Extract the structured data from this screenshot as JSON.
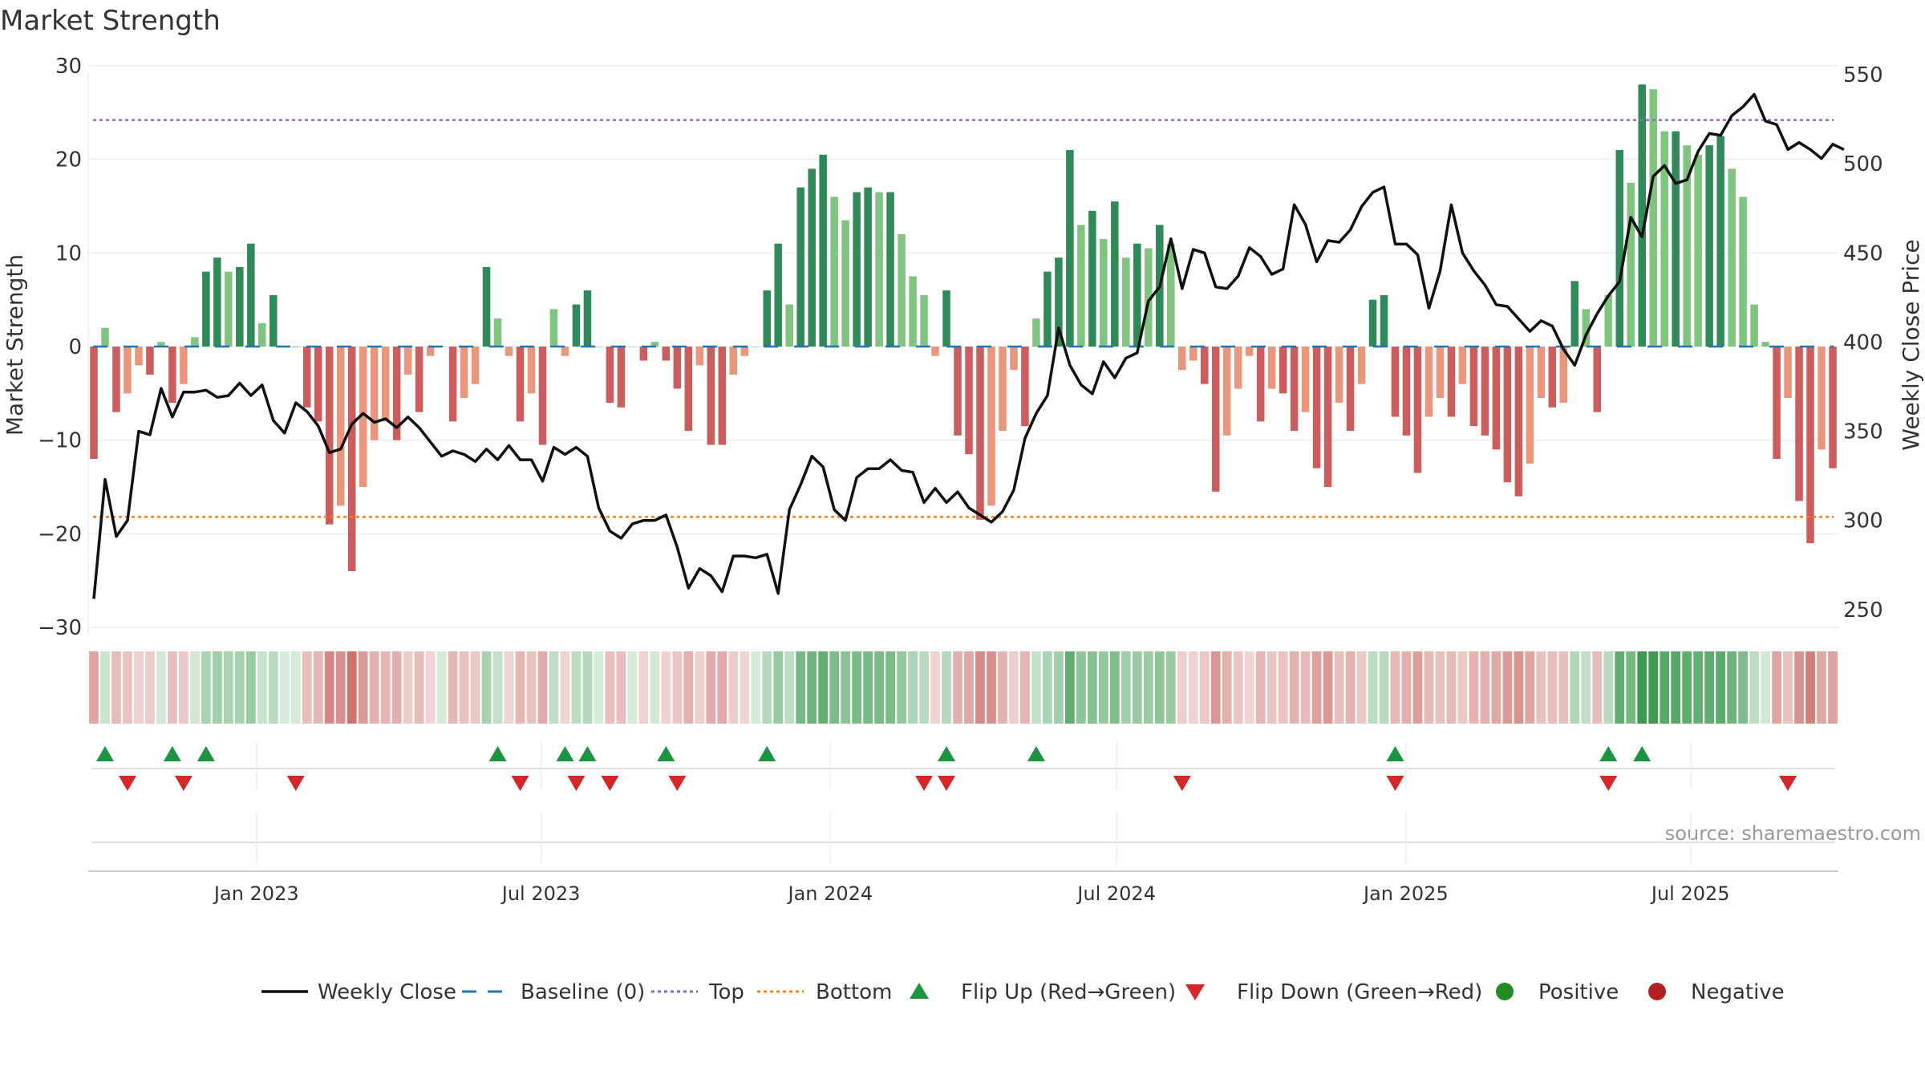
{
  "chart_data": {
    "type": "bar",
    "title": "Market Strength",
    "ylabel_left": "Market Strength",
    "ylabel_right": "Weekly Close Price",
    "ylim_left": [
      -30,
      30
    ],
    "ylim_right": [
      240,
      555
    ],
    "yticks_left": [
      -30,
      -20,
      -10,
      0,
      10,
      20,
      30
    ],
    "yticks_right": [
      250,
      300,
      350,
      400,
      450,
      500,
      550
    ],
    "x_start": "2022-09-16",
    "x_end": "2025-10-03",
    "xticks": [
      {
        "date": "2023-01-01",
        "label": "Jan 2023"
      },
      {
        "date": "2023-07-01",
        "label": "Jul 2023"
      },
      {
        "date": "2024-01-01",
        "label": "Jan 2024"
      },
      {
        "date": "2024-07-01",
        "label": "Jul 2024"
      },
      {
        "date": "2025-01-01",
        "label": "Jan 2025"
      },
      {
        "date": "2025-07-01",
        "label": "Jul 2025"
      }
    ],
    "top_line": 24.2,
    "bottom_line": -18.2,
    "baseline": 0,
    "strength": [
      -12,
      2,
      -7,
      -5,
      -2,
      -3,
      0.5,
      -6,
      -4,
      1,
      8,
      9.5,
      8,
      8.5,
      11,
      2.5,
      5.5,
      0,
      0,
      -6.5,
      -8,
      -19,
      -17,
      -24,
      -15,
      -10,
      -8,
      -10,
      -3,
      -7,
      -1,
      0,
      -8,
      -5.5,
      -4,
      8.5,
      3,
      -1,
      -8,
      -5,
      -10.5,
      4,
      -1,
      4.5,
      6,
      0,
      -6,
      -6.5,
      0,
      -1.5,
      0.5,
      -1.5,
      -4.5,
      -9,
      -2,
      -10.5,
      -10.5,
      -3,
      -1,
      0,
      6,
      11,
      4.5,
      17,
      19,
      20.5,
      16,
      13.5,
      16.5,
      17,
      16.5,
      16.5,
      12,
      7.5,
      5.5,
      -1,
      6,
      -9.5,
      -11.5,
      -18.5,
      -17,
      -9,
      -2.5,
      -8.5,
      3,
      8,
      9.5,
      21,
      13,
      14.5,
      11.5,
      15.5,
      9.5,
      11,
      10.5,
      13,
      11,
      -2.5,
      -1.5,
      -4,
      -15.5,
      -9.5,
      -4.5,
      -1,
      -8,
      -4.5,
      -5,
      -9,
      -7,
      -13,
      -15,
      -6,
      -9,
      -4,
      5,
      5.5,
      -7.5,
      -9.5,
      -13.5,
      -7.5,
      -5.5,
      -7.5,
      -4,
      -8.5,
      -9.5,
      -11,
      -14.5,
      -16,
      -12.5,
      -5.5,
      -6.5,
      -6,
      7,
      4,
      -7,
      5.5,
      21,
      17.5,
      28,
      27.5,
      23,
      23,
      21.5,
      20.5,
      21.5,
      22.5,
      19,
      16,
      4.5,
      0.5,
      -12,
      -5.5,
      -16.5,
      -21,
      -11,
      -13
    ],
    "price": [
      256,
      323,
      291,
      300,
      350,
      348,
      374,
      358,
      372,
      372,
      373,
      369,
      370,
      377,
      370,
      376,
      356,
      349,
      366,
      361,
      353,
      338,
      340,
      354,
      360,
      355,
      357,
      352,
      358,
      352,
      344,
      336,
      339,
      337,
      333,
      340,
      334,
      342,
      334,
      334,
      322,
      341,
      337,
      341,
      336,
      307,
      294,
      290,
      298,
      300,
      300,
      303,
      285,
      262,
      273,
      269,
      260,
      280,
      280,
      279,
      281,
      259,
      306,
      320,
      336,
      330,
      306,
      300,
      324,
      329,
      329,
      334,
      328,
      327,
      310,
      318,
      310,
      316,
      307,
      303,
      299,
      305,
      317,
      346,
      360,
      370,
      408,
      387,
      376,
      371,
      389,
      380,
      391,
      394,
      423,
      431,
      458,
      430,
      452,
      450,
      431,
      430,
      437,
      453,
      448,
      438,
      441,
      477,
      466,
      445,
      457,
      456,
      463,
      476,
      484,
      487,
      455,
      455,
      449,
      419,
      440,
      477,
      450,
      440,
      432,
      421,
      420,
      413,
      406,
      412,
      409,
      396,
      387,
      404,
      416,
      426,
      434,
      470,
      459,
      493,
      499,
      489,
      491,
      507,
      517,
      516,
      527,
      532,
      539,
      524,
      522,
      508,
      512,
      508,
      503,
      511,
      508
    ],
    "flips_up": [
      1,
      7,
      10,
      36,
      42,
      44,
      51,
      60,
      76,
      84,
      116,
      135,
      138
    ],
    "flips_down": [
      3,
      8,
      18,
      38,
      43,
      46,
      52,
      74,
      76,
      97,
      116,
      135,
      151
    ],
    "source": "source: sharemaestro.com",
    "legend": [
      {
        "label": "Weekly Close",
        "kind": "solid-line",
        "color": "#111111"
      },
      {
        "label": "Baseline (0)",
        "kind": "dash-line",
        "color": "#1f77b4"
      },
      {
        "label": "Top",
        "kind": "dot-line",
        "color": "#9467bd"
      },
      {
        "label": "Bottom",
        "kind": "dot-line",
        "color": "#ff7f0e"
      },
      {
        "label": "Flip Up (Red→Green)",
        "kind": "tri-up",
        "color": "#1a9641"
      },
      {
        "label": "Flip Down (Green→Red)",
        "kind": "tri-down",
        "color": "#d62728"
      },
      {
        "label": "Positive",
        "kind": "circle",
        "color": "#228b22"
      },
      {
        "label": "Negative",
        "kind": "circle",
        "color": "#b22222"
      }
    ],
    "colors": {
      "pos_strong": "#2e8b57",
      "pos_light": "#7fc47f",
      "neg_strong": "#cd5c5c",
      "neg_light": "#e9967a",
      "price_line": "#111111",
      "top_line": "#9467bd",
      "bottom_line": "#ff7f0e",
      "baseline": "#1f77b4"
    }
  }
}
